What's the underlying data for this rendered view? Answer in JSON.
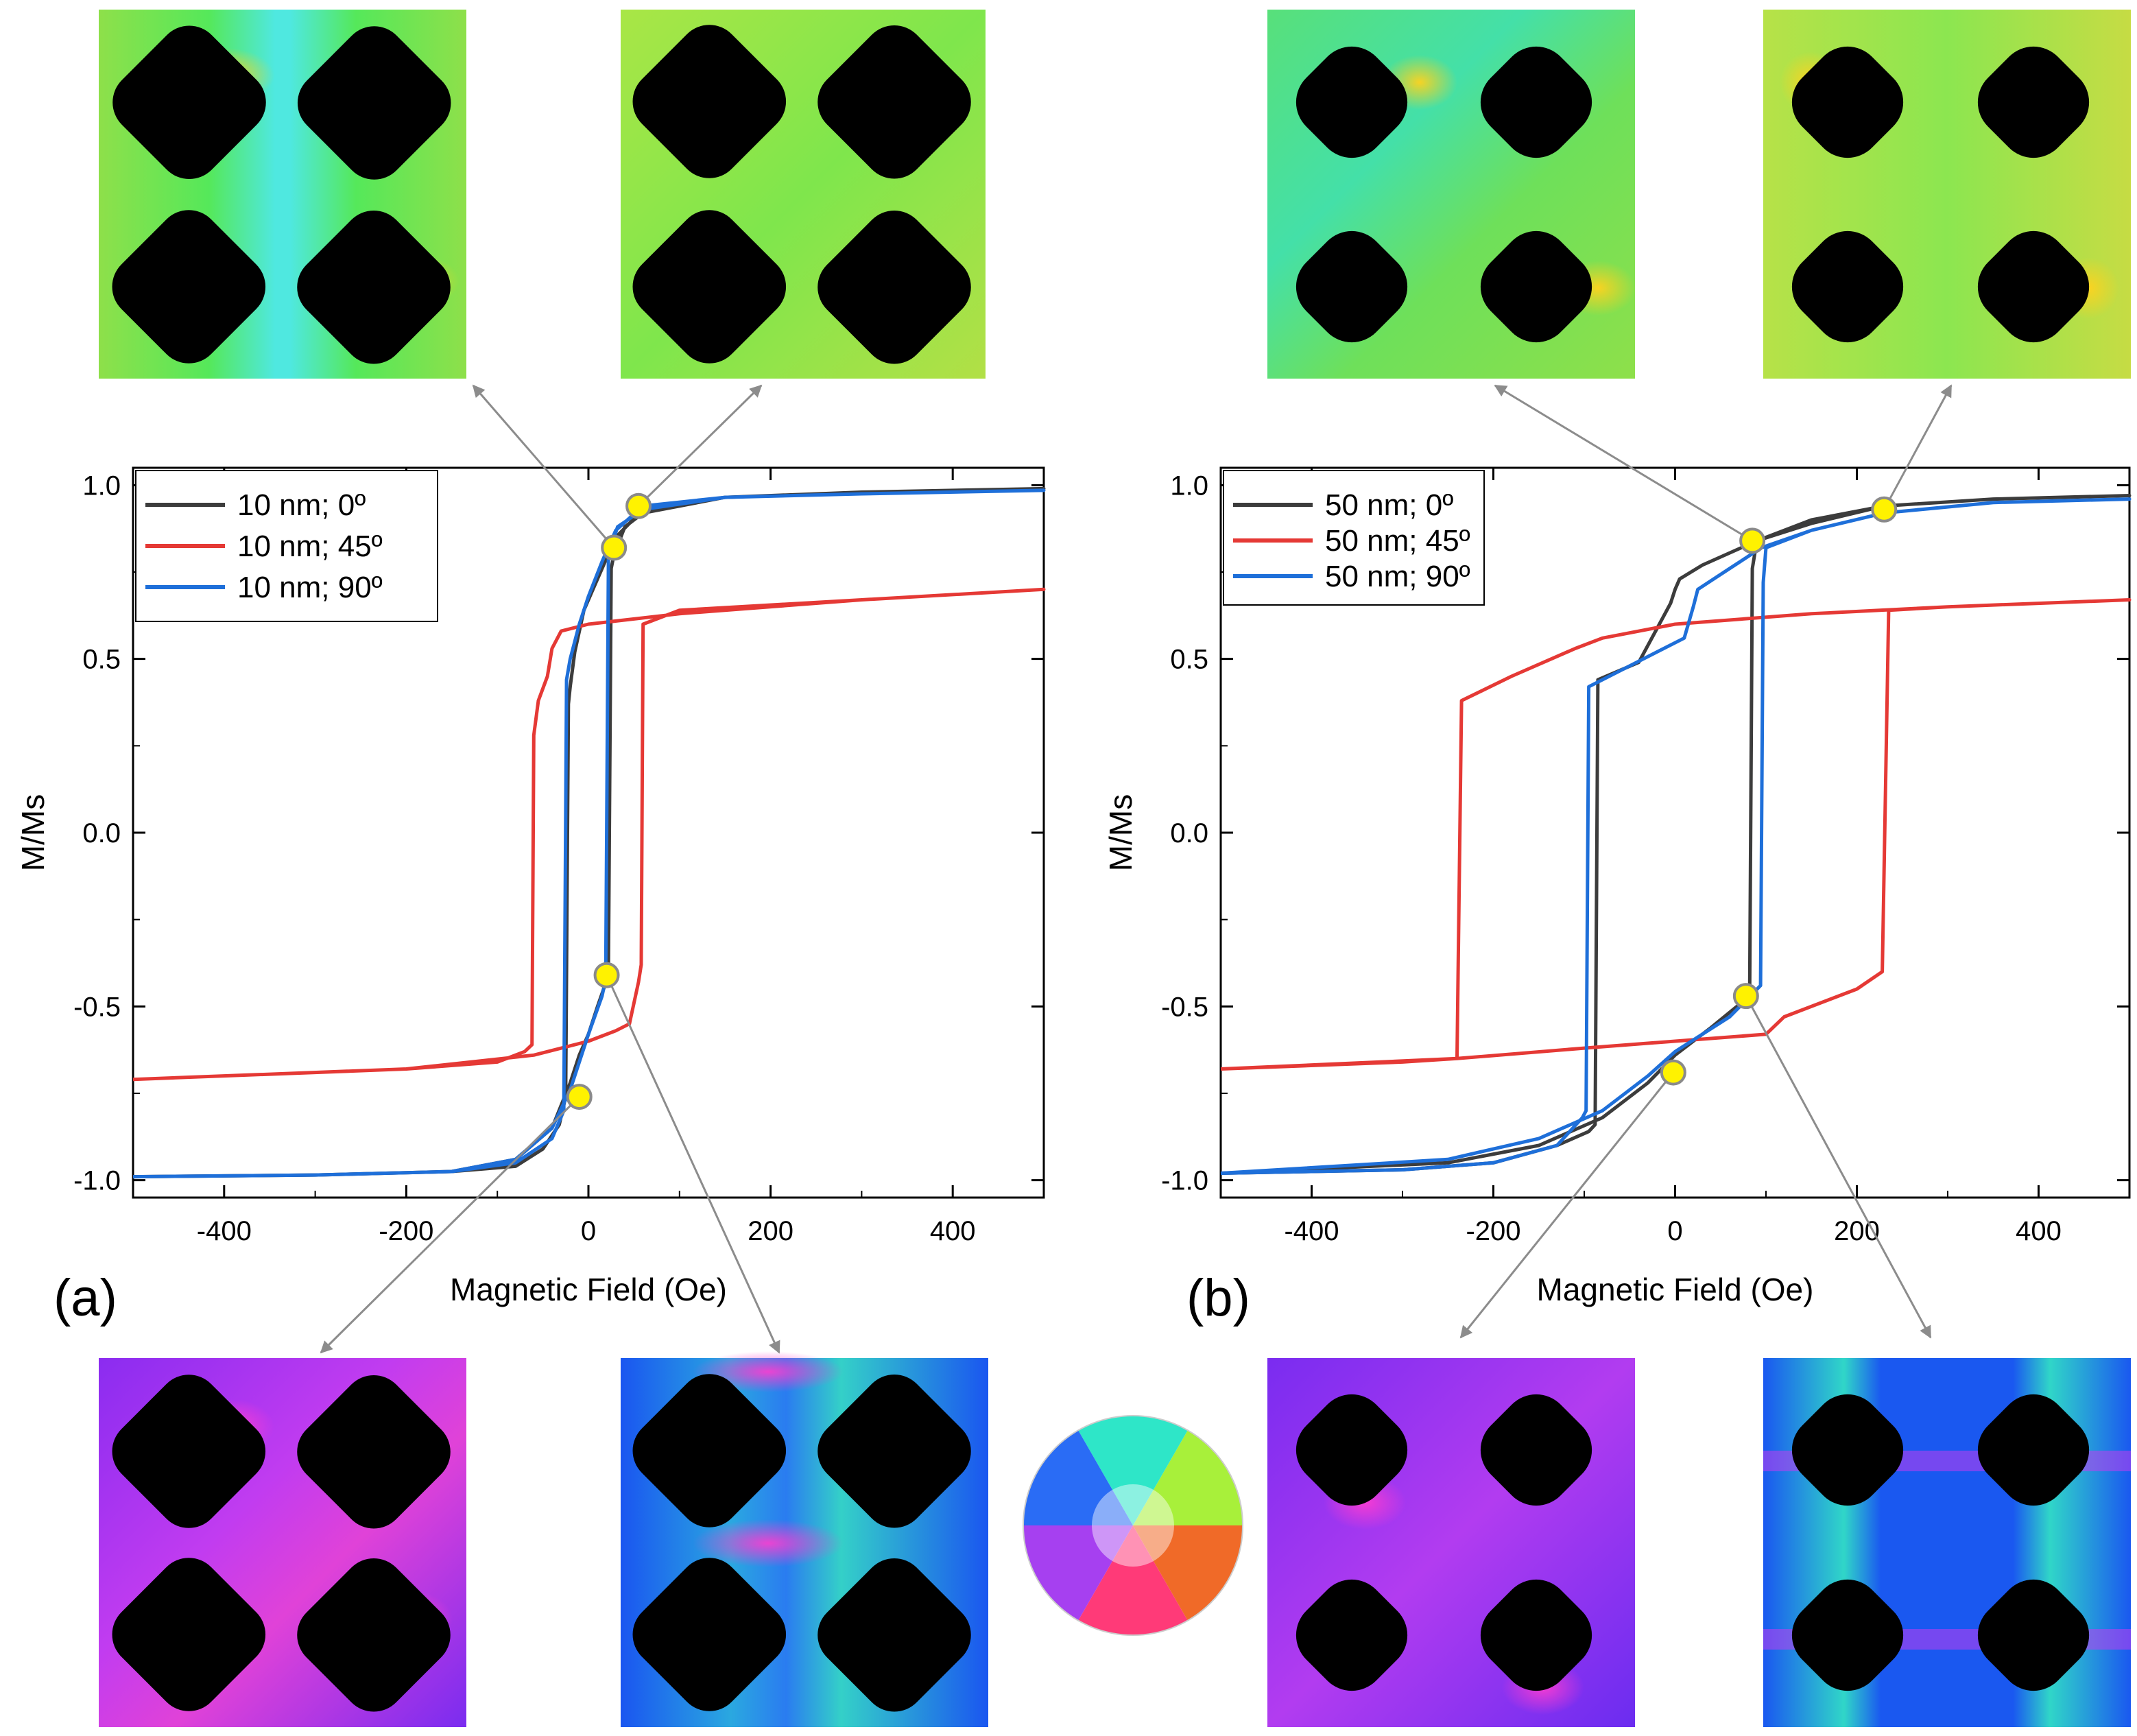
{
  "panel_labels": [
    "(a)",
    "(b)"
  ],
  "colors": {
    "line_0deg": "#3c3c3c",
    "line_45deg": "#e53935",
    "line_90deg": "#1e6fd9",
    "marker_fill": "#fff200",
    "marker_stroke": "#8a8a8a",
    "arrow": "#8c8c8c"
  },
  "chart_data": [
    {
      "type": "line",
      "panel": "(a)",
      "xlabel": "Magnetic Field (Oe)",
      "ylabel": "M/Ms",
      "xlim": [
        -500,
        500
      ],
      "ylim": [
        -1.05,
        1.05
      ],
      "xticks": [
        -400,
        -200,
        0,
        200,
        400
      ],
      "xtick_labels": [
        "-400",
        "-200",
        "0",
        "200",
        "400"
      ],
      "yticks": [
        -1.0,
        -0.5,
        0.0,
        0.5,
        1.0
      ],
      "ytick_labels": [
        "-1.0",
        "-0.5",
        "0.0",
        "0.5",
        "1.0"
      ],
      "legend": [
        "10 nm; 0º",
        "10 nm; 45º",
        "10 nm; 90º"
      ],
      "series": [
        {
          "name": "10 nm; 0º",
          "color_key": "line_0deg",
          "x": [
            -500,
            -300,
            -150,
            -80,
            -50,
            -32,
            -25,
            -22,
            -20,
            -15,
            -5,
            5,
            15,
            30,
            60,
            150,
            300,
            500,
            500,
            300,
            150,
            60,
            40,
            28,
            25,
            22,
            20,
            18,
            10,
            0,
            -10,
            -20,
            -40,
            -80,
            -150,
            -300,
            -500
          ],
          "y": [
            -0.99,
            -0.985,
            -0.975,
            -0.96,
            -0.91,
            -0.84,
            -0.76,
            0.37,
            0.42,
            0.52,
            0.64,
            0.7,
            0.76,
            0.85,
            0.93,
            0.965,
            0.98,
            0.99,
            0.99,
            0.98,
            0.965,
            0.92,
            0.88,
            0.8,
            0.76,
            -0.38,
            -0.42,
            -0.44,
            -0.5,
            -0.58,
            -0.64,
            -0.72,
            -0.85,
            -0.94,
            -0.975,
            -0.985,
            -0.99
          ]
        },
        {
          "name": "10 nm; 45º",
          "color_key": "line_45deg",
          "x": [
            -500,
            -300,
            -200,
            -100,
            -70,
            -62,
            -60,
            -55,
            -45,
            -40,
            -30,
            0,
            100,
            300,
            500,
            500,
            300,
            100,
            60,
            58,
            55,
            45,
            30,
            0,
            -60,
            -200,
            -500
          ],
          "y": [
            -0.71,
            -0.69,
            -0.68,
            -0.66,
            -0.63,
            -0.61,
            0.28,
            0.38,
            0.45,
            0.53,
            0.58,
            0.6,
            0.63,
            0.67,
            0.7,
            0.7,
            0.67,
            0.64,
            0.6,
            -0.38,
            -0.43,
            -0.55,
            -0.57,
            -0.6,
            -0.64,
            -0.68,
            -0.71
          ]
        },
        {
          "name": "10 nm; 90º",
          "color_key": "line_90deg",
          "x": [
            -500,
            -300,
            -150,
            -80,
            -40,
            -27,
            -24,
            -20,
            -10,
            0,
            15,
            30,
            60,
            150,
            300,
            500,
            500,
            300,
            150,
            60,
            32,
            22,
            19,
            15,
            0,
            -10,
            -20,
            -40,
            -80,
            -150,
            -300,
            -500
          ],
          "y": [
            -0.99,
            -0.985,
            -0.975,
            -0.95,
            -0.88,
            -0.8,
            0.44,
            0.5,
            0.6,
            0.68,
            0.78,
            0.87,
            0.94,
            0.965,
            0.975,
            0.985,
            0.985,
            0.975,
            0.965,
            0.93,
            0.88,
            0.8,
            -0.42,
            -0.47,
            -0.58,
            -0.66,
            -0.74,
            -0.85,
            -0.94,
            -0.975,
            -0.985,
            -0.99
          ]
        }
      ],
      "markers": [
        {
          "x": 28,
          "y": 0.82
        },
        {
          "x": 55,
          "y": 0.94
        },
        {
          "x": -10,
          "y": -0.76
        },
        {
          "x": 20,
          "y": -0.41
        }
      ]
    },
    {
      "type": "line",
      "panel": "(b)",
      "xlabel": "Magnetic Field (Oe)",
      "ylabel": "M/Ms",
      "xlim": [
        -500,
        500
      ],
      "ylim": [
        -1.05,
        1.05
      ],
      "xticks": [
        -400,
        -200,
        0,
        200,
        400
      ],
      "xtick_labels": [
        "-400",
        "-200",
        "0",
        "200",
        "400"
      ],
      "yticks": [
        -1.0,
        -0.5,
        0.0,
        0.5,
        1.0
      ],
      "ytick_labels": [
        "-1.0",
        "-0.5",
        "0.0",
        "0.5",
        "1.0"
      ],
      "legend": [
        "50 nm; 0º",
        "50 nm; 45º",
        "50 nm; 90º"
      ],
      "series": [
        {
          "name": "50 nm; 0º",
          "color_key": "line_0deg",
          "x": [
            -500,
            -300,
            -200,
            -130,
            -95,
            -88,
            -85,
            -40,
            -5,
            0,
            5,
            30,
            90,
            150,
            230,
            350,
            500,
            500,
            350,
            230,
            150,
            90,
            85,
            82,
            40,
            0,
            -30,
            -80,
            -150,
            -250,
            -500
          ],
          "y": [
            -0.98,
            -0.97,
            -0.95,
            -0.9,
            -0.86,
            -0.84,
            0.44,
            0.49,
            0.66,
            0.7,
            0.73,
            0.77,
            0.84,
            0.89,
            0.94,
            0.96,
            0.97,
            0.97,
            0.96,
            0.94,
            0.9,
            0.84,
            0.76,
            -0.47,
            -0.56,
            -0.64,
            -0.72,
            -0.82,
            -0.9,
            -0.95,
            -0.98
          ]
        },
        {
          "name": "50 nm; 45º",
          "color_key": "line_45deg",
          "x": [
            -500,
            -300,
            -240,
            -235,
            -180,
            -110,
            -80,
            0,
            150,
            300,
            500,
            500,
            300,
            235,
            228,
            200,
            120,
            100,
            0,
            -100,
            -240,
            -500
          ],
          "y": [
            -0.68,
            -0.66,
            -0.65,
            0.38,
            0.45,
            0.53,
            0.56,
            0.6,
            0.63,
            0.65,
            0.67,
            0.67,
            0.65,
            0.64,
            -0.4,
            -0.45,
            -0.53,
            -0.58,
            -0.6,
            -0.62,
            -0.65,
            -0.68
          ]
        },
        {
          "name": "50 nm; 90º",
          "color_key": "line_90deg",
          "x": [
            -500,
            -300,
            -200,
            -130,
            -102,
            -98,
            -95,
            -50,
            10,
            20,
            25,
            60,
            95,
            150,
            230,
            350,
            500,
            500,
            350,
            230,
            150,
            100,
            97,
            94,
            60,
            0,
            -30,
            -80,
            -150,
            -250,
            -500
          ],
          "y": [
            -0.98,
            -0.97,
            -0.95,
            -0.9,
            -0.82,
            -0.8,
            0.42,
            0.48,
            0.56,
            0.65,
            0.7,
            0.76,
            0.82,
            0.87,
            0.92,
            0.95,
            0.96,
            0.96,
            0.95,
            0.92,
            0.87,
            0.82,
            0.72,
            -0.44,
            -0.53,
            -0.63,
            -0.7,
            -0.8,
            -0.88,
            -0.94,
            -0.98
          ]
        }
      ],
      "markers": [
        {
          "x": 85,
          "y": 0.84
        },
        {
          "x": 230,
          "y": 0.93
        },
        {
          "x": -2,
          "y": -0.69
        },
        {
          "x": 78,
          "y": -0.47
        }
      ]
    }
  ]
}
